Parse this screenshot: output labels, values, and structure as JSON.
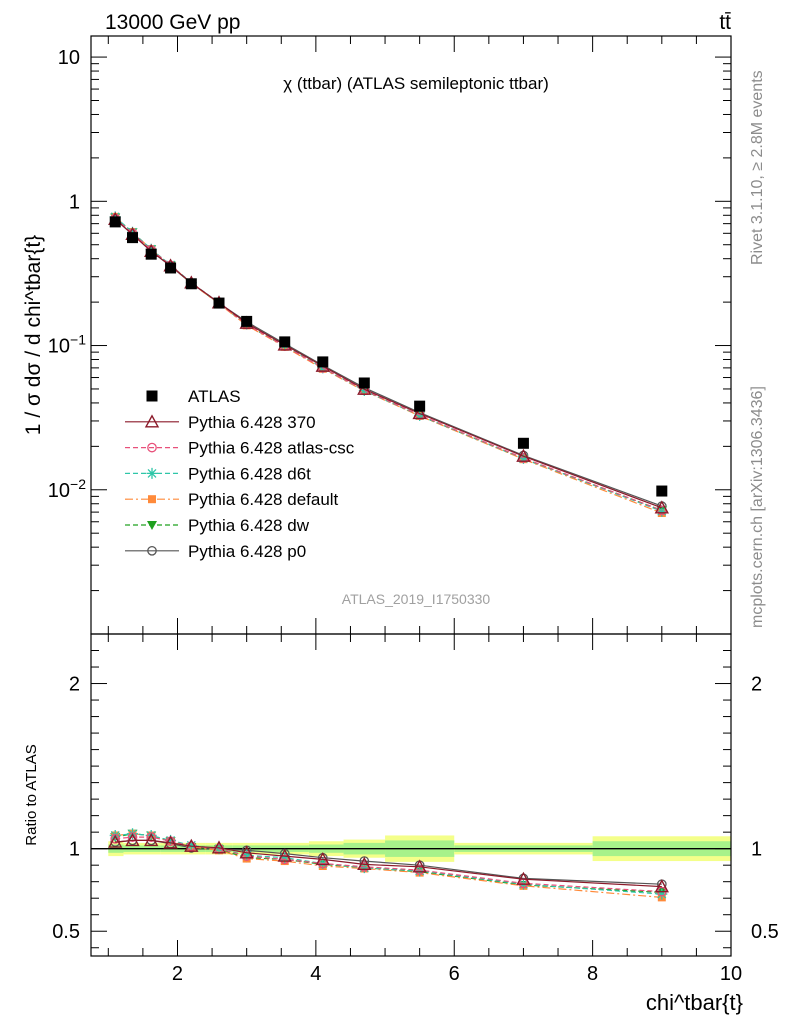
{
  "header": {
    "left": "13000 GeV pp",
    "right": "tt̄"
  },
  "side_text": {
    "rivet": "Rivet 3.1.10, ≥ 2.8M events",
    "mcplots": "mcplots.cern.ch [arXiv:1306.3436]"
  },
  "watermark": "ATLAS_2019_I1750330",
  "colors": {
    "atlas": "#000000",
    "p370": "#8b1a2a",
    "atlascsc": "#e8507a",
    "d6t": "#2fc6a8",
    "default": "#ff8a3a",
    "dw": "#1fa01f",
    "p0": "#555555",
    "band_inner": "#a7f28a",
    "band_outer": "#f4ff8a"
  },
  "chart_data": [
    {
      "type": "line",
      "title": "χ (ttbar) (ATLAS semileptonic ttbar)",
      "ylabel": "1 / σ dσ / d chi^tbar{t}",
      "yscale": "log",
      "ylim": [
        0.001,
        14
      ],
      "xlim": [
        0.75,
        10
      ],
      "yticks": [
        {
          "value": 10,
          "base": "10",
          "exp": ""
        },
        {
          "value": 1,
          "base": "1",
          "exp": ""
        },
        {
          "value": 0.1,
          "base": "10",
          "exp": "−1"
        },
        {
          "value": 0.01,
          "base": "10",
          "exp": "−2"
        }
      ],
      "x": [
        1.1,
        1.35,
        1.62,
        1.9,
        2.2,
        2.6,
        3.0,
        3.55,
        4.1,
        4.7,
        5.5,
        7.0,
        9.0
      ],
      "series": [
        {
          "name": "ATLAS",
          "key": "atlas",
          "marker": "square",
          "line": "none",
          "values": [
            0.72,
            0.56,
            0.43,
            0.345,
            0.268,
            0.197,
            0.147,
            0.106,
            0.077,
            0.055,
            0.038,
            0.021,
            0.0098
          ]
        },
        {
          "name": "Pythia 6.428 370",
          "key": "p370",
          "marker": "triangle-open",
          "line": "solid",
          "values": [
            0.75,
            0.59,
            0.45,
            0.357,
            0.272,
            0.198,
            0.143,
            0.101,
            0.072,
            0.0498,
            0.0338,
            0.0171,
            0.0075
          ]
        },
        {
          "name": "Pythia 6.428 atlas-csc",
          "key": "atlascsc",
          "marker": "circle-open",
          "line": "dashed",
          "values": [
            0.76,
            0.6,
            0.46,
            0.36,
            0.272,
            0.197,
            0.14,
            0.099,
            0.07,
            0.049,
            0.033,
            0.0166,
            0.0072
          ]
        },
        {
          "name": "Pythia 6.428 d6t",
          "key": "d6t",
          "marker": "asterisk",
          "line": "dashed",
          "values": [
            0.78,
            0.61,
            0.465,
            0.362,
            0.273,
            0.198,
            0.141,
            0.1,
            0.07,
            0.0488,
            0.0328,
            0.0165,
            0.0071
          ]
        },
        {
          "name": "Pythia 6.428 default",
          "key": "default",
          "marker": "square-small",
          "line": "dashdot",
          "values": [
            0.78,
            0.61,
            0.465,
            0.36,
            0.27,
            0.195,
            0.138,
            0.098,
            0.069,
            0.0485,
            0.0325,
            0.0163,
            0.0069
          ]
        },
        {
          "name": "Pythia 6.428 dw",
          "key": "dw",
          "marker": "triangle-down",
          "line": "dashed",
          "values": [
            0.77,
            0.61,
            0.465,
            0.36,
            0.27,
            0.196,
            0.139,
            0.099,
            0.07,
            0.0487,
            0.0327,
            0.0164,
            0.0072
          ]
        },
        {
          "name": "Pythia 6.428 p0",
          "key": "p0",
          "marker": "circle-open",
          "line": "solid",
          "values": [
            0.75,
            0.59,
            0.45,
            0.355,
            0.27,
            0.197,
            0.146,
            0.103,
            0.073,
            0.051,
            0.0343,
            0.0173,
            0.0077
          ]
        }
      ]
    },
    {
      "type": "line",
      "ylabel": "Ratio to ATLAS",
      "xlabel": "chi^tbar{t}",
      "ylim": [
        0.35,
        2.3
      ],
      "xlim": [
        0.75,
        10
      ],
      "yticks": [
        0.5,
        1,
        2
      ],
      "xticks": [
        2,
        4,
        6,
        8,
        10
      ],
      "band": {
        "edges": [
          1.0,
          1.22,
          1.48,
          1.76,
          2.05,
          2.4,
          2.8,
          3.2,
          3.9,
          4.4,
          5.0,
          6.0,
          8.0,
          10.0
        ],
        "inner": [
          0.025,
          0.02,
          0.02,
          0.02,
          0.02,
          0.02,
          0.02,
          0.02,
          0.025,
          0.035,
          0.05,
          0.02,
          0.045
        ],
        "outer": [
          0.045,
          0.035,
          0.035,
          0.035,
          0.035,
          0.035,
          0.035,
          0.035,
          0.045,
          0.055,
          0.08,
          0.035,
          0.075
        ]
      },
      "series": [
        {
          "key": "p370",
          "values": [
            1.04,
            1.05,
            1.05,
            1.035,
            1.015,
            1.005,
            0.975,
            0.955,
            0.935,
            0.905,
            0.89,
            0.815,
            0.77
          ]
        },
        {
          "key": "atlascsc",
          "values": [
            1.06,
            1.07,
            1.07,
            1.045,
            1.015,
            1.0,
            0.955,
            0.935,
            0.91,
            0.89,
            0.87,
            0.79,
            0.74
          ]
        },
        {
          "key": "d6t",
          "values": [
            1.08,
            1.09,
            1.08,
            1.05,
            1.02,
            1.0,
            0.96,
            0.945,
            0.91,
            0.885,
            0.865,
            0.785,
            0.725
          ]
        },
        {
          "key": "default",
          "values": [
            1.08,
            1.09,
            1.08,
            1.045,
            1.01,
            0.99,
            0.94,
            0.925,
            0.895,
            0.88,
            0.855,
            0.775,
            0.705
          ]
        },
        {
          "key": "dw",
          "values": [
            1.07,
            1.09,
            1.08,
            1.045,
            1.01,
            0.995,
            0.945,
            0.935,
            0.905,
            0.885,
            0.86,
            0.78,
            0.735
          ]
        },
        {
          "key": "p0",
          "values": [
            1.04,
            1.05,
            1.05,
            1.03,
            1.005,
            1.0,
            0.99,
            0.97,
            0.945,
            0.925,
            0.9,
            0.82,
            0.785
          ]
        }
      ]
    }
  ]
}
